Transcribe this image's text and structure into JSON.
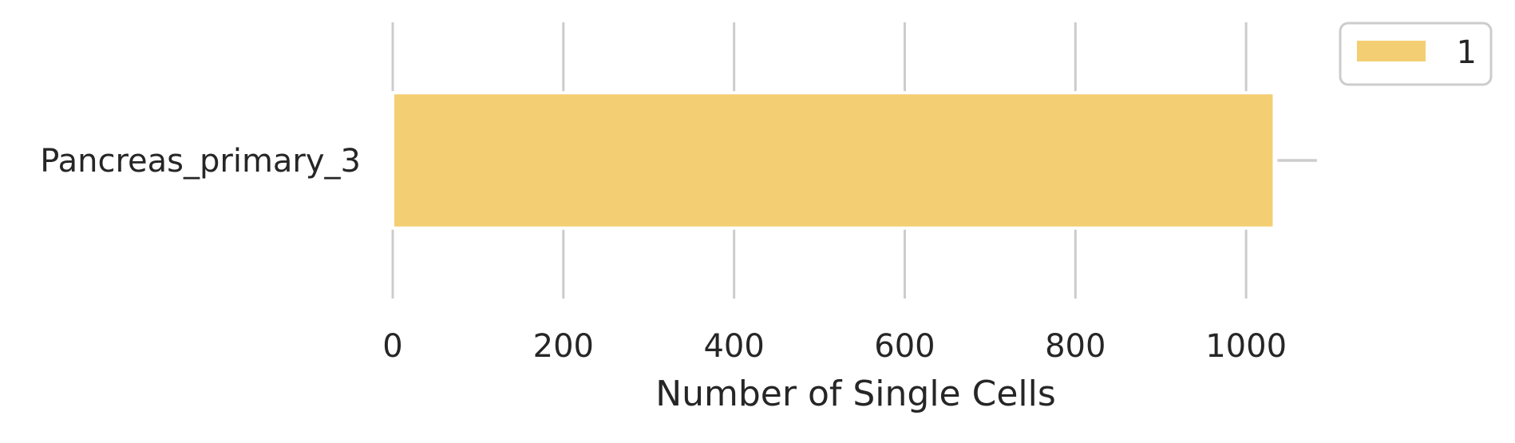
{
  "chart_data": {
    "type": "bar",
    "orientation": "horizontal",
    "categories": [
      "Pancreas_primary_3"
    ],
    "series": [
      {
        "name": "1",
        "values": [
          1033
        ],
        "color": "#f4ce72",
        "error": [
          50
        ]
      }
    ],
    "xlabel": "Number of Single Cells",
    "ylabel": "",
    "title": "",
    "xlim": [
      0,
      1085
    ],
    "xticks": [
      0,
      200,
      400,
      600,
      800,
      1000
    ],
    "xtick_labels": [
      "0",
      "200",
      "400",
      "600",
      "800",
      "1000"
    ],
    "grid": "vertical",
    "grid_color": "#cccccc",
    "legend_position": "upper-right-outside"
  }
}
